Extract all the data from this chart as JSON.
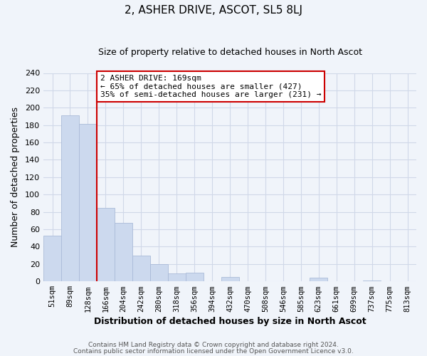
{
  "title": "2, ASHER DRIVE, ASCOT, SL5 8LJ",
  "subtitle": "Size of property relative to detached houses in North Ascot",
  "xlabel": "Distribution of detached houses by size in North Ascot",
  "ylabel": "Number of detached properties",
  "bar_labels": [
    "51sqm",
    "89sqm",
    "128sqm",
    "166sqm",
    "204sqm",
    "242sqm",
    "280sqm",
    "318sqm",
    "356sqm",
    "394sqm",
    "432sqm",
    "470sqm",
    "508sqm",
    "546sqm",
    "585sqm",
    "623sqm",
    "661sqm",
    "699sqm",
    "737sqm",
    "775sqm",
    "813sqm"
  ],
  "bar_values": [
    53,
    191,
    181,
    85,
    67,
    30,
    20,
    9,
    10,
    0,
    5,
    0,
    0,
    0,
    0,
    4,
    0,
    0,
    1,
    0,
    0
  ],
  "bar_color": "#ccd9ee",
  "bar_edge_color": "#aabbd8",
  "vline_index": 3,
  "vline_color": "#cc0000",
  "ylim": [
    0,
    240
  ],
  "yticks": [
    0,
    20,
    40,
    60,
    80,
    100,
    120,
    140,
    160,
    180,
    200,
    220,
    240
  ],
  "annotation_line1": "2 ASHER DRIVE: 169sqm",
  "annotation_line2": "← 65% of detached houses are smaller (427)",
  "annotation_line3": "35% of semi-detached houses are larger (231) →",
  "annotation_box_color": "#ffffff",
  "annotation_box_edge": "#cc0000",
  "footer1": "Contains HM Land Registry data © Crown copyright and database right 2024.",
  "footer2": "Contains public sector information licensed under the Open Government Licence v3.0.",
  "grid_color": "#d0d8e8",
  "background_color": "#f0f4fa",
  "plot_bg_color": "#f0f4fa"
}
